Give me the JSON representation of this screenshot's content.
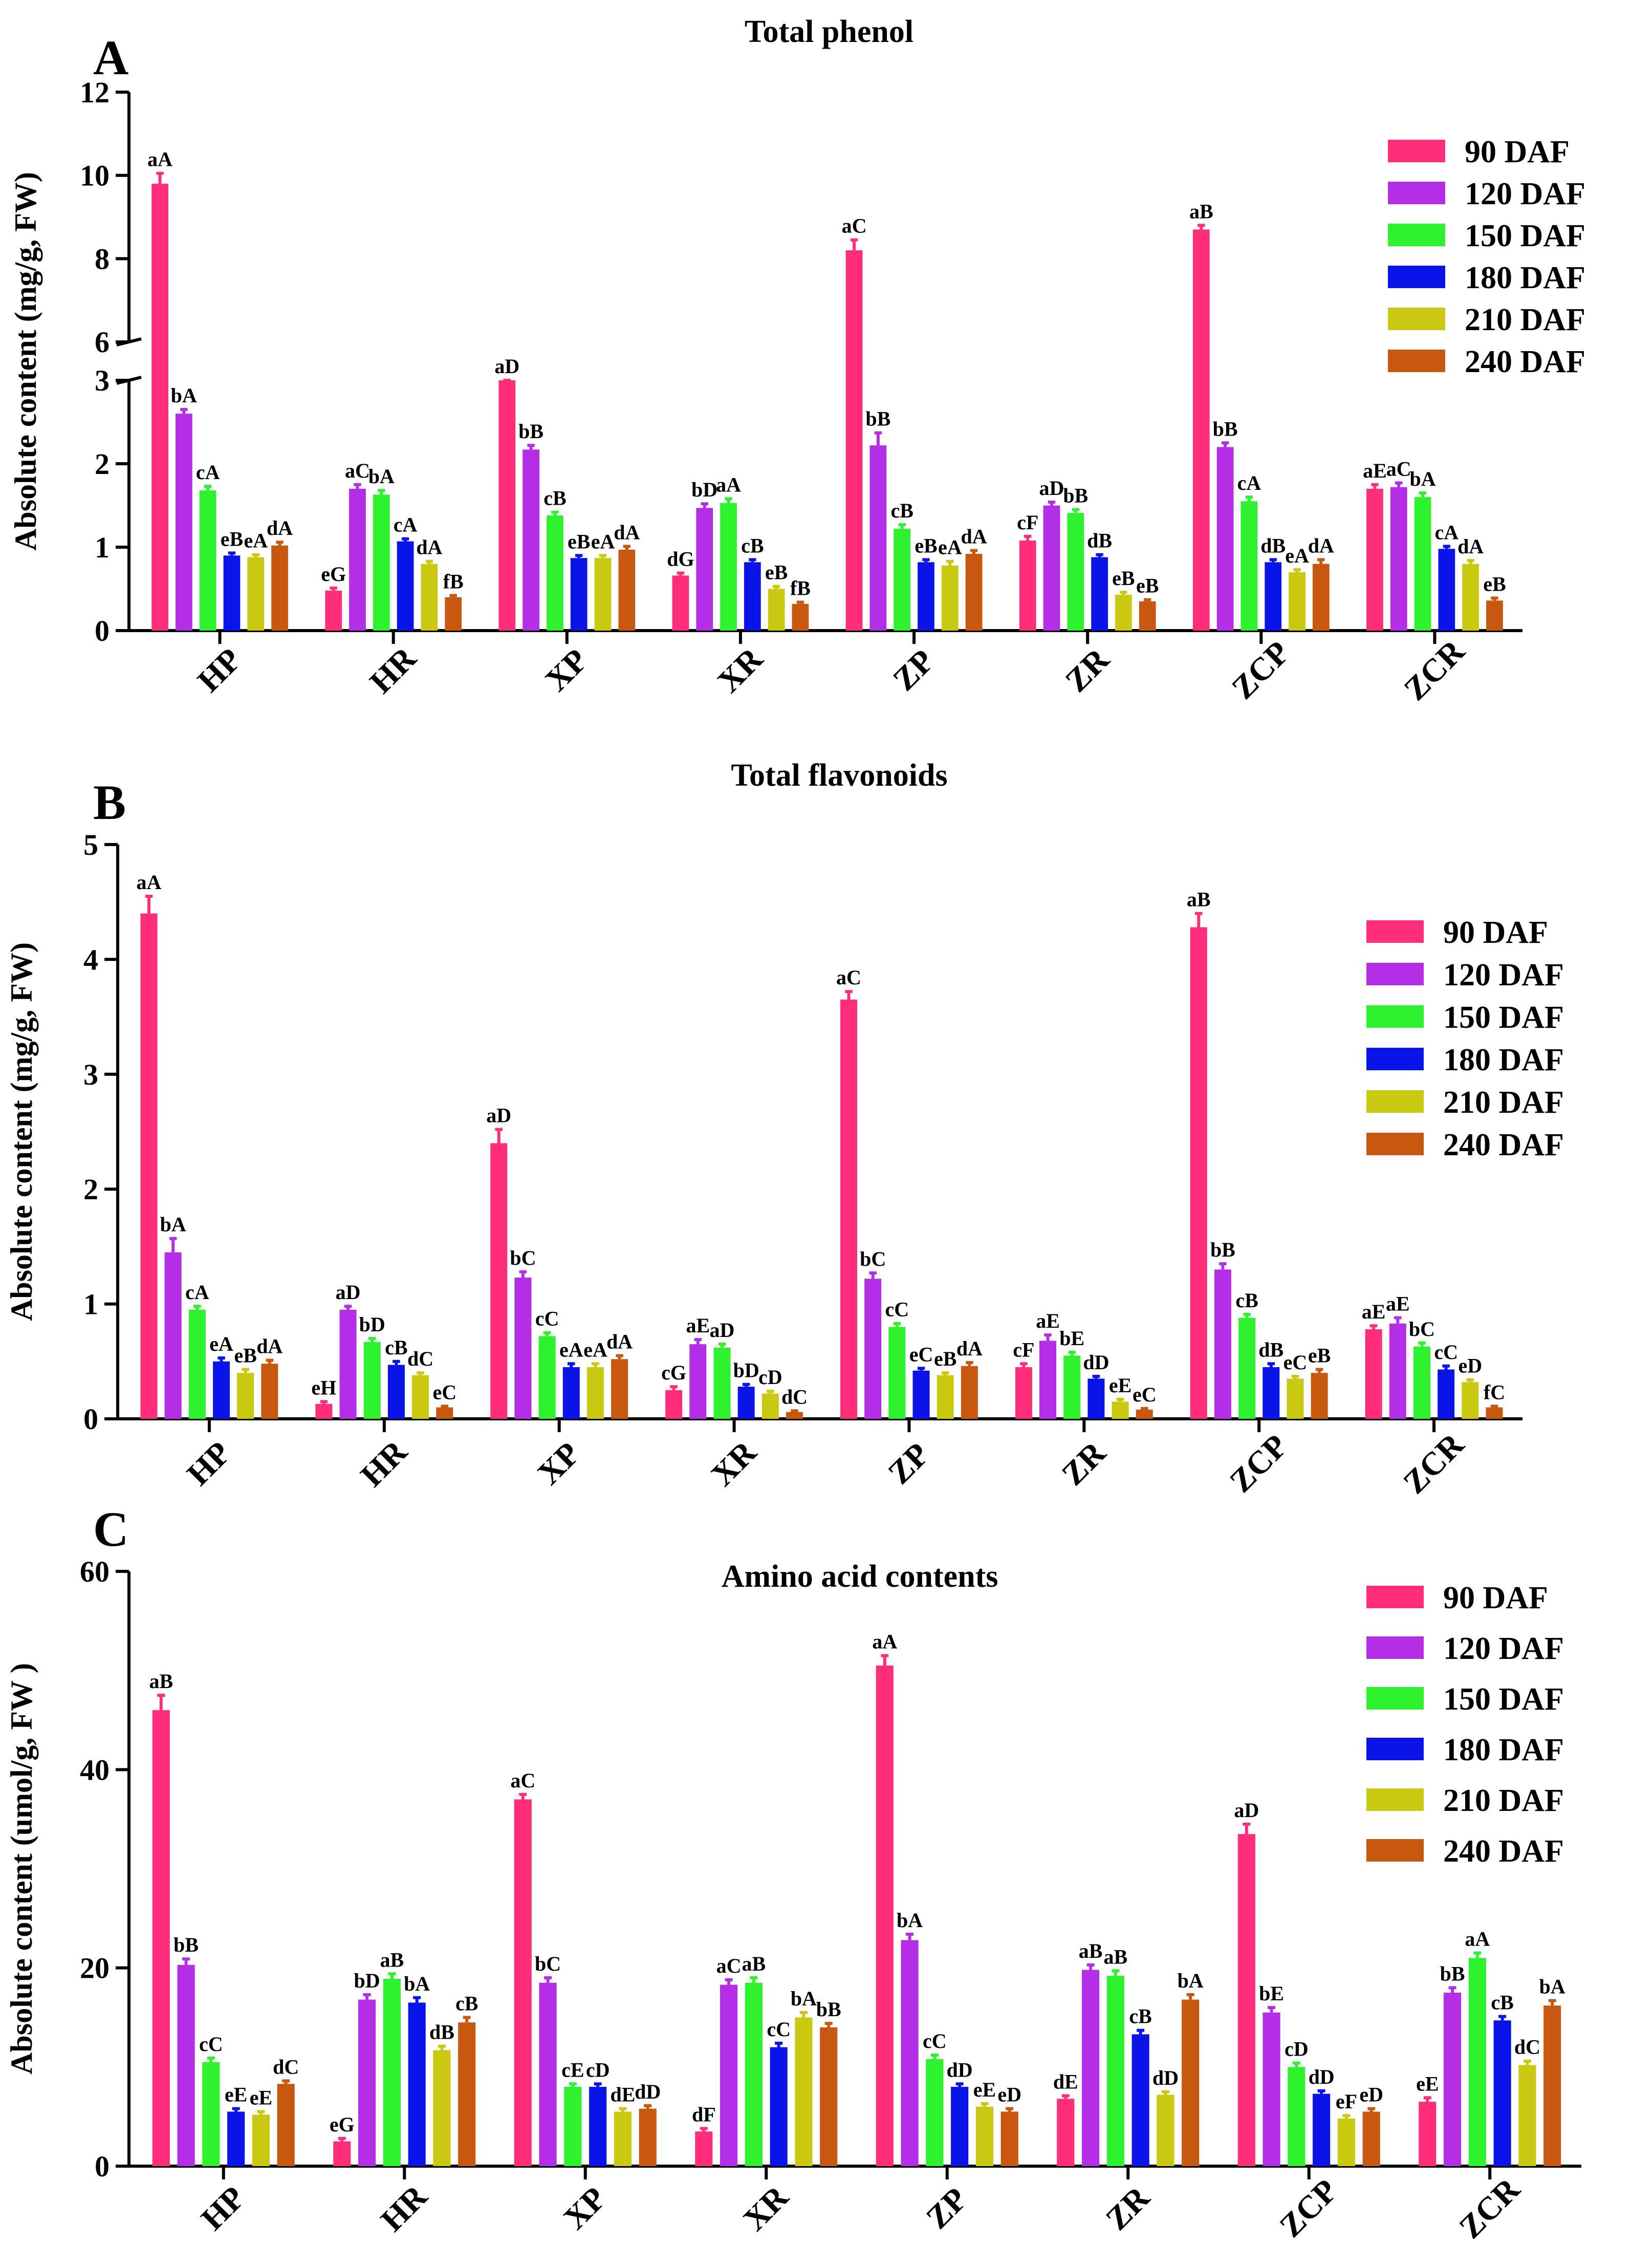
{
  "colors": {
    "90 DAF": "#ff2d7a",
    "120 DAF": "#b32ee6",
    "150 DAF": "#2df22d",
    "180 DAF": "#0a14e8",
    "210 DAF": "#c9c912",
    "240 DAF": "#c8580f"
  },
  "chart_data": [
    {
      "type": "bar",
      "panel_letter": "A",
      "title": "Total phenol",
      "ylabel": "Absolute content (mg/g, FW)",
      "xlabel": "",
      "categories": [
        "HP",
        "HR",
        "XP",
        "XR",
        "ZP",
        "ZR",
        "ZCP",
        "ZCR"
      ],
      "axis_break": [
        3,
        6
      ],
      "ylim": [
        0,
        12
      ],
      "yticks": [
        "0",
        "1",
        "2",
        "3",
        "6",
        "8",
        "10",
        "12"
      ],
      "legend_position": "top-right",
      "series": [
        {
          "name": "90 DAF",
          "values": [
            9.8,
            0.48,
            3.0,
            0.66,
            8.2,
            1.08,
            8.7,
            1.7
          ],
          "errors": [
            0.25,
            0.03,
            0.05,
            0.03,
            0.25,
            0.05,
            0.1,
            0.05
          ],
          "labels": [
            "aA",
            "eG",
            "aD",
            "dG",
            "aC",
            "cF",
            "aB",
            "aE"
          ]
        },
        {
          "name": "120 DAF",
          "values": [
            2.6,
            1.7,
            2.17,
            1.47,
            2.22,
            1.5,
            2.2,
            1.72
          ],
          "errors": [
            0.05,
            0.05,
            0.05,
            0.05,
            0.15,
            0.04,
            0.05,
            0.05
          ],
          "labels": [
            "bA",
            "aC",
            "bB",
            "bD",
            "bB",
            "aD",
            "bB",
            "aC"
          ]
        },
        {
          "name": "150 DAF",
          "values": [
            1.68,
            1.63,
            1.38,
            1.53,
            1.22,
            1.41,
            1.55,
            1.6
          ],
          "errors": [
            0.05,
            0.05,
            0.04,
            0.05,
            0.05,
            0.04,
            0.05,
            0.05
          ],
          "labels": [
            "cA",
            "bA",
            "cB",
            "aA",
            "cB",
            "bB",
            "cA",
            "bA"
          ]
        },
        {
          "name": "180 DAF",
          "values": [
            0.9,
            1.07,
            0.87,
            0.82,
            0.82,
            0.88,
            0.82,
            0.98
          ],
          "errors": [
            0.03,
            0.03,
            0.03,
            0.03,
            0.03,
            0.03,
            0.03,
            0.03
          ],
          "labels": [
            "eB",
            "cA",
            "eB",
            "cB",
            "eB",
            "dB",
            "dB",
            "cA"
          ]
        },
        {
          "name": "210 DAF",
          "values": [
            0.88,
            0.8,
            0.87,
            0.5,
            0.78,
            0.43,
            0.7,
            0.8
          ],
          "errors": [
            0.03,
            0.03,
            0.03,
            0.03,
            0.05,
            0.03,
            0.03,
            0.04
          ],
          "labels": [
            "eA",
            "dA",
            "eA",
            "eB",
            "eA",
            "eB",
            "eA",
            "dA"
          ]
        },
        {
          "name": "240 DAF",
          "values": [
            1.02,
            0.4,
            0.97,
            0.32,
            0.92,
            0.35,
            0.8,
            0.36
          ],
          "errors": [
            0.04,
            0.02,
            0.04,
            0.02,
            0.04,
            0.02,
            0.05,
            0.03
          ],
          "labels": [
            "dA",
            "fB",
            "dA",
            "fB",
            "dA",
            "eB",
            "dA",
            "eB"
          ]
        }
      ]
    },
    {
      "type": "bar",
      "panel_letter": "B",
      "title": "Total flavonoids",
      "ylabel": "Absolute content (mg/g, FW)",
      "xlabel": "",
      "categories": [
        "HP",
        "HR",
        "XP",
        "XR",
        "ZP",
        "ZR",
        "ZCP",
        "ZCR"
      ],
      "ylim": [
        0,
        5
      ],
      "yticks": [
        "0",
        "1",
        "2",
        "3",
        "4",
        "5"
      ],
      "legend_position": "top-right",
      "series": [
        {
          "name": "90 DAF",
          "values": [
            4.4,
            0.13,
            2.4,
            0.25,
            3.65,
            0.45,
            4.28,
            0.78
          ],
          "errors": [
            0.15,
            0.02,
            0.12,
            0.03,
            0.07,
            0.03,
            0.12,
            0.03
          ],
          "labels": [
            "aA",
            "eH",
            "aD",
            "cG",
            "aC",
            "cF",
            "aB",
            "aE"
          ]
        },
        {
          "name": "120 DAF",
          "values": [
            1.45,
            0.95,
            1.23,
            0.65,
            1.22,
            0.68,
            1.3,
            0.83
          ],
          "errors": [
            0.12,
            0.03,
            0.05,
            0.04,
            0.05,
            0.05,
            0.05,
            0.05
          ],
          "labels": [
            "bA",
            "aD",
            "bC",
            "aE",
            "bC",
            "aE",
            "bB",
            "aE"
          ]
        },
        {
          "name": "150 DAF",
          "values": [
            0.95,
            0.67,
            0.72,
            0.62,
            0.8,
            0.55,
            0.88,
            0.63
          ],
          "errors": [
            0.03,
            0.03,
            0.03,
            0.03,
            0.03,
            0.03,
            0.03,
            0.03
          ],
          "labels": [
            "cA",
            "bD",
            "cC",
            "aD",
            "cC",
            "bE",
            "cB",
            "bC"
          ]
        },
        {
          "name": "180 DAF",
          "values": [
            0.5,
            0.47,
            0.45,
            0.28,
            0.42,
            0.35,
            0.45,
            0.43
          ],
          "errors": [
            0.03,
            0.03,
            0.03,
            0.02,
            0.02,
            0.02,
            0.03,
            0.03
          ],
          "labels": [
            "eA",
            "cB",
            "eA",
            "bD",
            "eC",
            "dD",
            "dB",
            "cC"
          ]
        },
        {
          "name": "210 DAF",
          "values": [
            0.4,
            0.38,
            0.45,
            0.22,
            0.38,
            0.15,
            0.35,
            0.32
          ],
          "errors": [
            0.03,
            0.02,
            0.03,
            0.02,
            0.02,
            0.02,
            0.02,
            0.02
          ],
          "labels": [
            "eB",
            "dC",
            "eA",
            "cD",
            "eB",
            "eE",
            "eC",
            "eD"
          ]
        },
        {
          "name": "240 DAF",
          "values": [
            0.48,
            0.1,
            0.52,
            0.06,
            0.46,
            0.08,
            0.4,
            0.1
          ],
          "errors": [
            0.03,
            0.01,
            0.03,
            0.01,
            0.03,
            0.01,
            0.03,
            0.01
          ],
          "labels": [
            "dA",
            "eC",
            "dA",
            "dC",
            "dA",
            "eC",
            "eB",
            "fC"
          ]
        }
      ]
    },
    {
      "type": "bar",
      "panel_letter": "C",
      "title": "Amino acid contents",
      "ylabel": "Absolute content (umol/g, FW )",
      "xlabel": "",
      "categories": [
        "HP",
        "HR",
        "XP",
        "XR",
        "ZP",
        "ZR",
        "ZCP",
        "ZCR"
      ],
      "ylim": [
        0,
        60
      ],
      "yticks": [
        "0",
        "20",
        "40",
        "60"
      ],
      "legend_position": "top-right",
      "series": [
        {
          "name": "90 DAF",
          "values": [
            46,
            2.5,
            37,
            3.5,
            50.5,
            6.8,
            33.5,
            6.5
          ],
          "errors": [
            1.5,
            0.3,
            0.5,
            0.3,
            1.0,
            0.3,
            1.0,
            0.4
          ],
          "labels": [
            "aB",
            "eG",
            "aC",
            "dF",
            "aA",
            "dE",
            "aD",
            "eE"
          ]
        },
        {
          "name": "120 DAF",
          "values": [
            20.3,
            16.8,
            18.5,
            18.3,
            22.8,
            19.8,
            15.5,
            17.5
          ],
          "errors": [
            0.6,
            0.5,
            0.5,
            0.5,
            0.6,
            0.5,
            0.5,
            0.5
          ],
          "labels": [
            "bB",
            "bD",
            "bC",
            "aC",
            "bA",
            "aB",
            "bE",
            "bB"
          ]
        },
        {
          "name": "150 DAF",
          "values": [
            10.5,
            18.9,
            8.0,
            18.5,
            10.8,
            19.2,
            10.0,
            21.0
          ],
          "errors": [
            0.4,
            0.5,
            0.3,
            0.5,
            0.4,
            0.5,
            0.4,
            0.5
          ],
          "labels": [
            "cC",
            "aB",
            "cE",
            "aB",
            "cC",
            "aB",
            "cD",
            "aA"
          ]
        },
        {
          "name": "180 DAF",
          "values": [
            5.5,
            16.5,
            8.0,
            12.0,
            8.0,
            13.3,
            7.3,
            14.7
          ],
          "errors": [
            0.3,
            0.5,
            0.3,
            0.4,
            0.3,
            0.4,
            0.3,
            0.4
          ],
          "labels": [
            "eE",
            "bA",
            "cD",
            "cC",
            "dD",
            "cB",
            "dD",
            "cB"
          ]
        },
        {
          "name": "210 DAF",
          "values": [
            5.2,
            11.7,
            5.5,
            15.0,
            6.0,
            7.2,
            4.8,
            10.2
          ],
          "errors": [
            0.3,
            0.4,
            0.3,
            0.5,
            0.3,
            0.3,
            0.3,
            0.4
          ],
          "labels": [
            "eE",
            "dB",
            "dE",
            "bA",
            "eE",
            "dD",
            "eF",
            "dC"
          ]
        },
        {
          "name": "240 DAF",
          "values": [
            8.3,
            14.5,
            5.8,
            14.0,
            5.5,
            16.8,
            5.5,
            16.2
          ],
          "errors": [
            0.3,
            0.5,
            0.3,
            0.4,
            0.3,
            0.5,
            0.3,
            0.5
          ],
          "labels": [
            "dC",
            "cB",
            "dD",
            "bB",
            "eD",
            "bA",
            "eD",
            "bA"
          ]
        }
      ]
    }
  ]
}
